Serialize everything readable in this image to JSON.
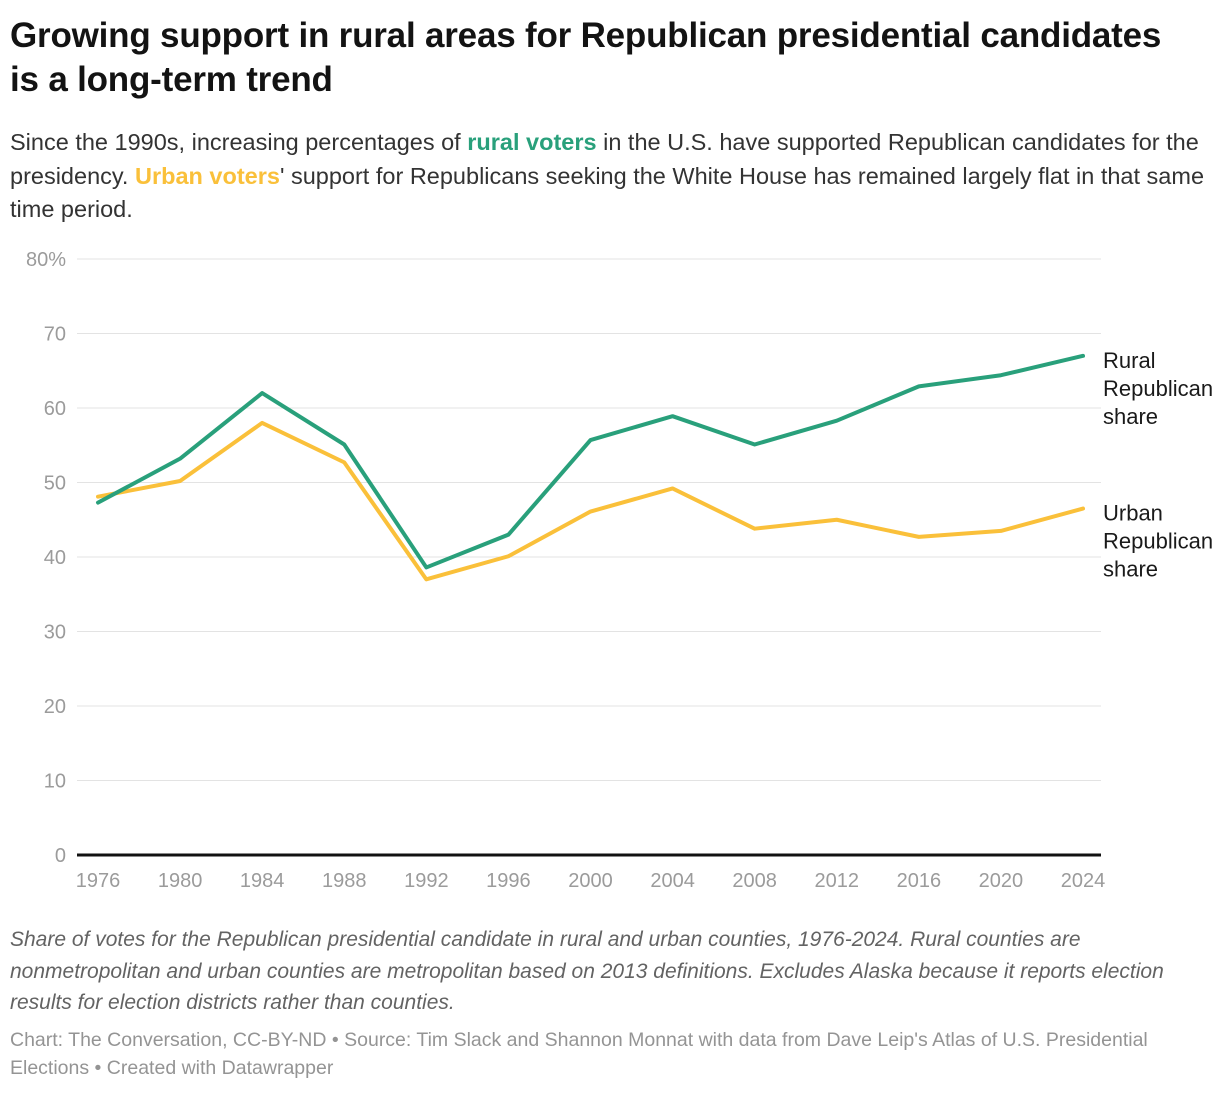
{
  "header": {
    "title": "Growing support in rural areas for Republican presidential candidates is a long-term trend",
    "subtitle": {
      "part1": "Since the 1990s, increasing percentages of ",
      "rural_highlight": "rural voters",
      "part2": " in the U.S. have supported Republican candidates for the presidency. ",
      "urban_highlight": "Urban voters",
      "part3": "' support for Republicans seeking the White House has remained largely flat in that same time period."
    }
  },
  "colors": {
    "rural_green": "#29a07b",
    "urban_yellow": "#fac03a",
    "grid": "#e3e3e3",
    "axis": "#111111",
    "tick_text": "#9b9b9b",
    "series_label_text": "#1a1a1a"
  },
  "chart_data": {
    "type": "line",
    "title": "Growing support in rural areas for Republican presidential candidates is a long-term trend",
    "xlabel": "",
    "ylabel": "",
    "ylim": [
      0,
      80
    ],
    "grid": true,
    "legend_position": "direct labels at right edge of lines",
    "x": [
      1976,
      1980,
      1984,
      1988,
      1992,
      1996,
      2000,
      2004,
      2008,
      2012,
      2016,
      2020,
      2024
    ],
    "yticks": [
      {
        "value": 0,
        "label": "0"
      },
      {
        "value": 10,
        "label": "10"
      },
      {
        "value": 20,
        "label": "20"
      },
      {
        "value": 30,
        "label": "30"
      },
      {
        "value": 40,
        "label": "40"
      },
      {
        "value": 50,
        "label": "50"
      },
      {
        "value": 60,
        "label": "60"
      },
      {
        "value": 70,
        "label": "70"
      },
      {
        "value": 80,
        "label": "80%"
      }
    ],
    "series": [
      {
        "id": "urban",
        "name": "Urban Republican share",
        "color": "#fac03a",
        "values": [
          48.1,
          50.2,
          58.0,
          52.7,
          37.0,
          40.1,
          46.1,
          49.2,
          43.8,
          45.0,
          42.7,
          43.5,
          46.5
        ]
      },
      {
        "id": "rural",
        "name": "Rural Republican share",
        "color": "#29a07b",
        "values": [
          47.3,
          53.2,
          62.0,
          55.1,
          38.6,
          43.0,
          55.7,
          58.9,
          55.1,
          58.3,
          62.9,
          64.4,
          67.0
        ]
      }
    ]
  },
  "footer": {
    "note": "Share of votes for the Republican presidential candidate in rural and urban counties, 1976-2024. Rural counties are nonmetropolitan and urban counties are metropolitan based on 2013 definitions. Excludes Alaska because it reports election results for election districts rather than counties.",
    "credit": "Chart: The Conversation, CC-BY-ND • Source: Tim Slack and Shannon Monnat with data from Dave Leip's Atlas of U.S. Presidential Elections • Created with Datawrapper"
  }
}
